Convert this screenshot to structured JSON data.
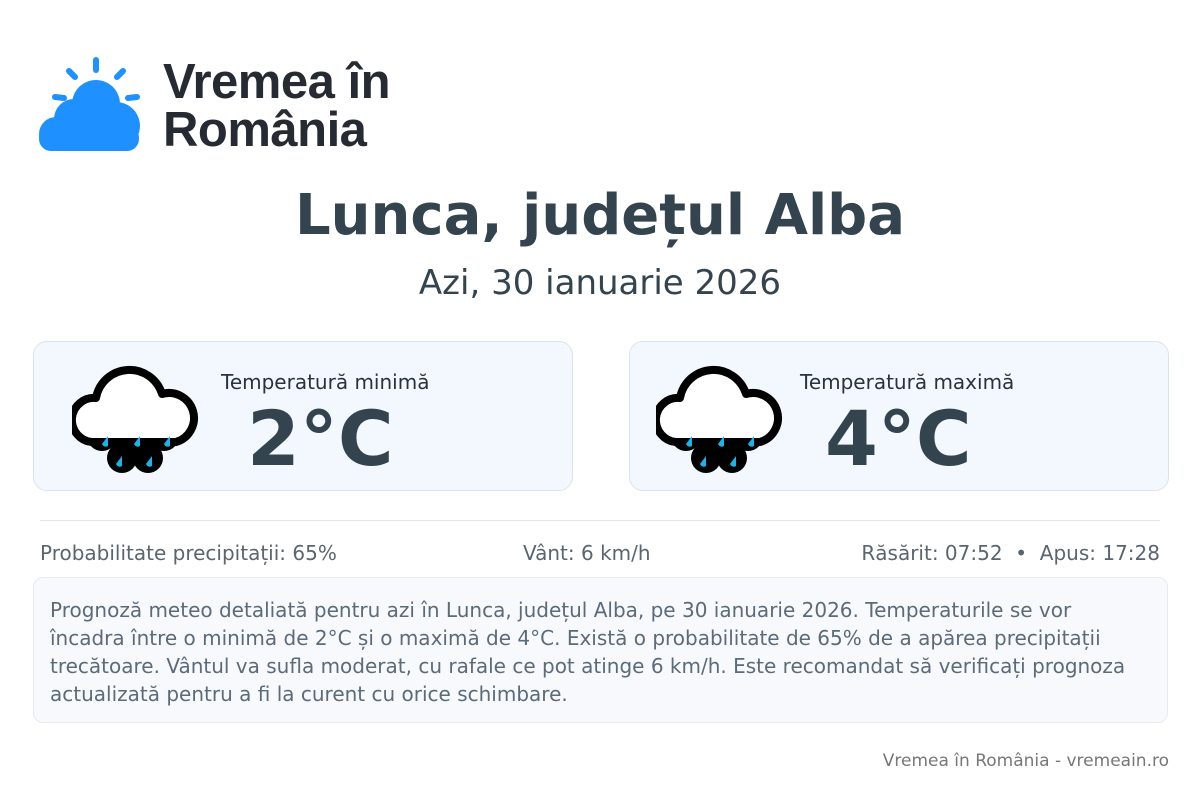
{
  "brand": {
    "line1": "Vremea în",
    "line2": "România",
    "logo_icon": "sun-cloud-icon",
    "logo_color": "#1e90ff"
  },
  "header": {
    "title": "Lunca, județul Alba",
    "subtitle": "Azi, 30 ianuarie 2026"
  },
  "cards": [
    {
      "label": "Temperatură minimă",
      "value": "2°C",
      "icon": "rain-cloud-icon"
    },
    {
      "label": "Temperatură maximă",
      "value": "4°C",
      "icon": "rain-cloud-icon"
    }
  ],
  "stats": {
    "precip": "Probabilitate precipitații: 65%",
    "wind": "Vânt: 6 km/h",
    "sun": "Răsărit: 07:52  •  Apus: 17:28"
  },
  "description": "Prognoză meteo detaliată pentru azi în Lunca, județul Alba, pe 30 ianuarie 2026. Temperaturile se vor încadra între o minimă de 2°C și o maximă de 4°C. Există o probabilitate de 65% de a apărea precipitații trecătoare. Vântul va sufla moderat, cu rafale ce pot atinge 6 km/h. Este recomandat să verificați prognoza actualizată pentru a fi la curent cu orice schimbare.",
  "footer": "Vremea în România - vremeain.ro"
}
